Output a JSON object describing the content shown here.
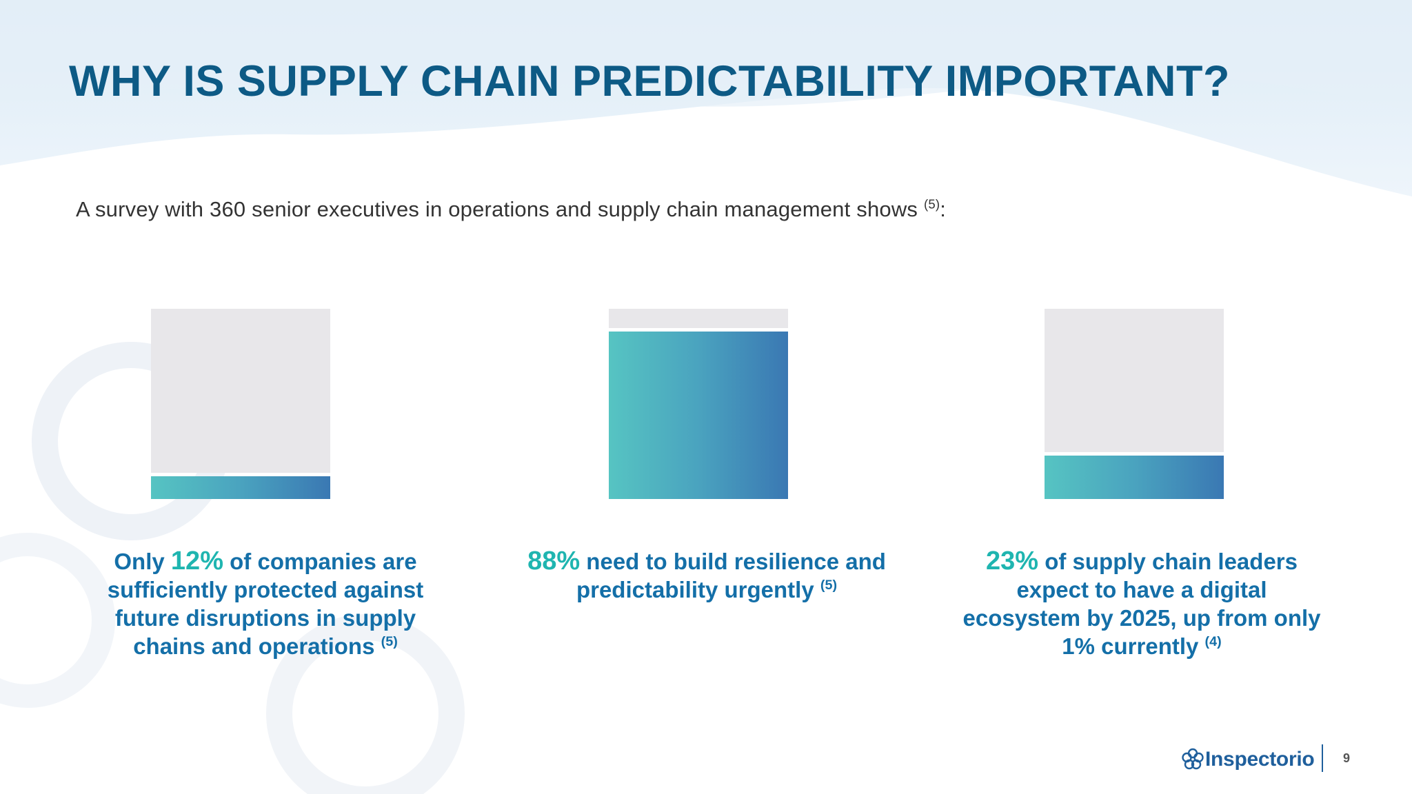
{
  "title": "WHY IS SUPPLY CHAIN PREDICTABILITY IMPORTANT?",
  "subtitle": {
    "text": "A survey with 360 senior executives in operations and supply chain management shows ",
    "ref": "(5)",
    "suffix": ":"
  },
  "stats": [
    {
      "percent": "12%",
      "pre": "Only ",
      "post": " of companies are sufficiently protected against future disruptions in supply chains and operations ",
      "ref": "(5)"
    },
    {
      "percent": "88%",
      "pre": "",
      "post": " need to build resilience and predictability urgently ",
      "ref": "(5)"
    },
    {
      "percent": "23%",
      "pre": "",
      "post": " of supply chain leaders expect to have a digital ecosystem by 2025, up from only 1% currently ",
      "ref": "(4)"
    }
  ],
  "chart_data": {
    "type": "bar",
    "categories": [
      "12%",
      "88%",
      "23%"
    ],
    "values": [
      12,
      88,
      23
    ],
    "ylim": [
      0,
      100
    ]
  },
  "colors": {
    "title": "#0d5a85",
    "text": "#146fa8",
    "percent": "#1fb5b0",
    "bar_track": "#e8e7ea",
    "bar_gradient_start": "#56c4c2",
    "bar_gradient_end": "#3a78b3"
  },
  "footer": {
    "logo_text": "Inspectorio",
    "logo_icon": "flower-logo-icon",
    "page_number": "9"
  }
}
